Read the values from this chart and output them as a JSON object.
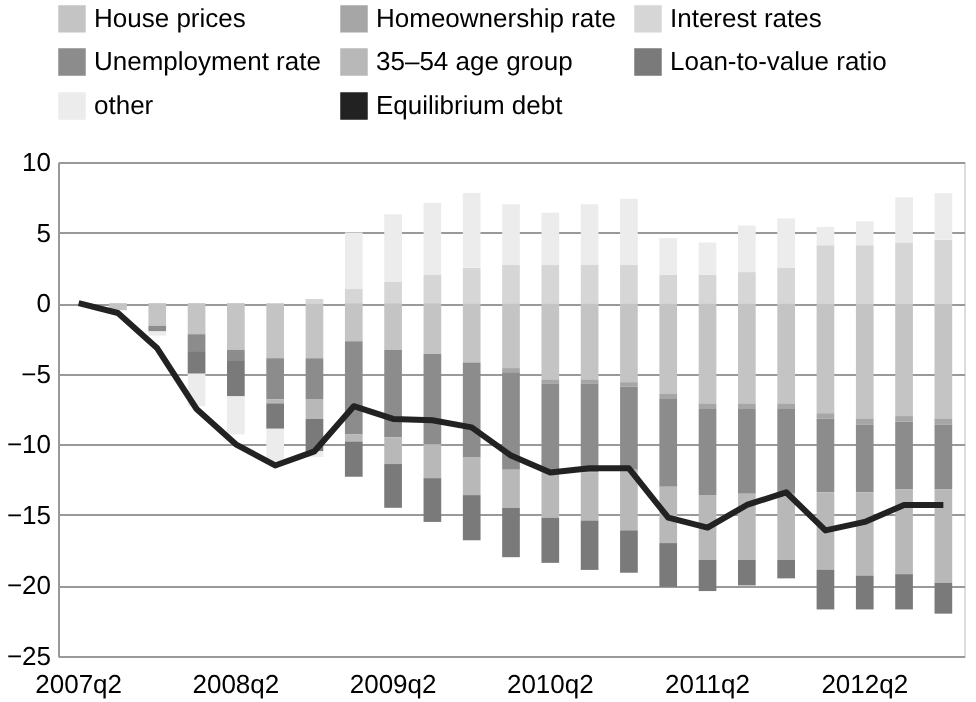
{
  "chart_data": {
    "type": "bar",
    "stacked": true,
    "legend": "top",
    "grid": "y",
    "ylim": [
      -25,
      10
    ],
    "yticks": [
      -25,
      -20,
      -15,
      -10,
      -5,
      0,
      5,
      10
    ],
    "categories": [
      "2007q2",
      null,
      null,
      null,
      "2008q2",
      null,
      null,
      null,
      "2009q2",
      null,
      null,
      null,
      "2010q2",
      null,
      null,
      null,
      "2011q2",
      null,
      null,
      null,
      "2012q2",
      null,
      null
    ],
    "series": [
      {
        "name": "House prices",
        "color": "#c4c4c4",
        "values": [
          0,
          -0.5,
          -1.6,
          -2.2,
          -3.3,
          -3.9,
          -3.9,
          -2.7,
          -3.3,
          -3.6,
          -4.2,
          -4.6,
          -5.4,
          -5.4,
          -5.6,
          -6.4,
          -7.1,
          -7.1,
          -7.1,
          -7.8,
          -8.2,
          -8.0,
          -8.2
        ]
      },
      {
        "name": "Homeownership rate",
        "color": "#a6a6a6",
        "values": [
          0,
          0,
          0,
          0,
          0,
          0,
          0,
          0,
          0,
          0,
          0,
          -0.3,
          -0.3,
          -0.3,
          -0.3,
          -0.4,
          -0.4,
          -0.4,
          -0.4,
          -0.4,
          -0.4,
          -0.4,
          -0.4
        ]
      },
      {
        "name": "Interest rates",
        "color": "#d6d6d6",
        "values": [
          0,
          0,
          0,
          0,
          0,
          0,
          0.3,
          1.0,
          1.5,
          2.0,
          2.5,
          2.7,
          2.7,
          2.7,
          2.7,
          2.0,
          2.0,
          2.2,
          2.5,
          4.1,
          4.1,
          4.3,
          4.5
        ]
      },
      {
        "name": "Unemployment rate",
        "color": "#8c8c8c",
        "values": [
          0,
          0,
          -0.4,
          -1.2,
          -0.8,
          -2.9,
          -2.9,
          -6.6,
          -6.2,
          -6.4,
          -6.7,
          -6.9,
          -6.3,
          -6.3,
          -5.9,
          -6.2,
          -6.1,
          -6.0,
          -6.0,
          -5.2,
          -4.8,
          -4.8,
          -4.6
        ]
      },
      {
        "name": "35–54 age group",
        "color": "#b8b8b8",
        "values": [
          0,
          0,
          0,
          0,
          0,
          -0.3,
          -1.4,
          -0.5,
          -1.9,
          -2.4,
          -2.7,
          -2.7,
          -3.2,
          -3.4,
          -4.3,
          -4.0,
          -4.6,
          -4.7,
          -4.7,
          -5.5,
          -5.9,
          -6.0,
          -6.6
        ]
      },
      {
        "name": "Loan-to-value ratio",
        "color": "#7a7a7a",
        "values": [
          0,
          0,
          0,
          -1.6,
          -2.5,
          -1.8,
          -2.3,
          -2.5,
          -3.1,
          -3.1,
          -3.2,
          -3.5,
          -3.2,
          -3.5,
          -3.0,
          -3.1,
          -2.2,
          -1.8,
          -1.3,
          -2.8,
          -2.4,
          -2.5,
          -2.2
        ]
      },
      {
        "name": "other",
        "color": "#ececec",
        "values": [
          0,
          0,
          -0.3,
          -2.3,
          -2.7,
          -2.5,
          -0.4,
          4.0,
          4.8,
          5.1,
          5.3,
          4.3,
          3.7,
          4.3,
          4.7,
          2.6,
          2.3,
          3.3,
          3.5,
          1.3,
          1.7,
          3.2,
          3.3
        ]
      },
      {
        "name": "Equilibrium debt",
        "type": "line",
        "color": "#222222",
        "values": [
          0,
          -0.7,
          -3.2,
          -7.5,
          -10.0,
          -11.5,
          -10.5,
          -7.3,
          -8.2,
          -8.3,
          -8.8,
          -10.8,
          -12.0,
          -11.7,
          -11.7,
          -15.2,
          -15.9,
          -14.3,
          -13.4,
          -16.1,
          -15.5,
          -14.3,
          -14.3
        ]
      }
    ]
  }
}
